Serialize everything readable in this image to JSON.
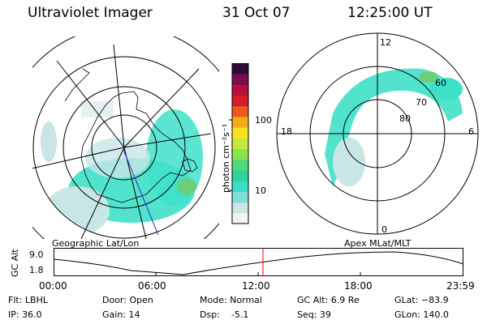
{
  "header": {
    "title": "Ultraviolet Imager",
    "date": "31 Oct 07",
    "time": "12:25:00 UT"
  },
  "left_map": {
    "label": "Geographic Lat/Lon"
  },
  "right_map": {
    "label": "Apex  MLat/MLT",
    "mlt_labels": {
      "top": "12",
      "left": "18",
      "right": "6",
      "bottom": "0"
    },
    "lat_labels": [
      "60",
      "70",
      "80"
    ]
  },
  "colorbar": {
    "unit": "photon cm⁻²s⁻¹",
    "ticks": [
      "100",
      "10"
    ],
    "scale": "log",
    "colors": [
      "#f2f2f2",
      "#c8e6e6",
      "#7fdfd8",
      "#39dfc5",
      "#2ed39a",
      "#4fd97a",
      "#8ae24f",
      "#c6e83a",
      "#f5e31f",
      "#f8ab18",
      "#ee5a1e",
      "#d91a2a",
      "#b70f3b",
      "#7d0c4c",
      "#2d0a3a"
    ]
  },
  "gc_alt_plot": {
    "ylabel": "GC Alt",
    "yticks": [
      "9.0",
      "1.8"
    ],
    "xticks": [
      "00:00",
      "06:00",
      "12:00",
      "18:00",
      "23:59"
    ],
    "current_time_marker": "12:25",
    "marker_color": "#ff0000"
  },
  "info": {
    "flt": "Flt: LBHL",
    "ip": "IP: 36.0",
    "door": "Door: Open",
    "gain": "Gain: 14",
    "mode": "Mode: Normal",
    "dsp": "Dsp:    -5.1",
    "gcalt": "GC Alt: 6.9 Re",
    "seq": "Seq: 39",
    "glat": "GLat: −83.9",
    "glon": "GLon: 140.0"
  },
  "accent_color": "#39dfc5"
}
